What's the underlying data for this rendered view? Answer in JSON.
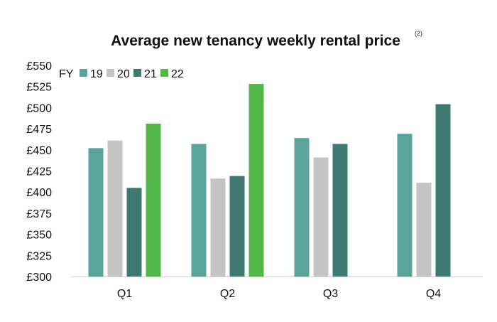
{
  "chart_data": {
    "type": "bar",
    "title": "Average new tenancy weekly rental price",
    "title_note": "(2)",
    "xlabel": "",
    "ylabel": "",
    "categories": [
      "Q1",
      "Q2",
      "Q3",
      "Q4"
    ],
    "y_tick_labels": [
      "£300",
      "£325",
      "£350",
      "£375",
      "£400",
      "£425",
      "£450",
      "£475",
      "£500",
      "£525",
      "£550"
    ],
    "y_ticks": [
      300,
      325,
      350,
      375,
      400,
      425,
      450,
      475,
      500,
      525,
      550
    ],
    "ylim": [
      300,
      550
    ],
    "grid": false,
    "legend": {
      "title": "FY",
      "position": "top-left"
    },
    "series": [
      {
        "name": "19",
        "color": "#5aa49c",
        "values": [
          452,
          457,
          464,
          469
        ]
      },
      {
        "name": "20",
        "color": "#c4c4c4",
        "values": [
          461,
          416,
          441,
          411
        ]
      },
      {
        "name": "21",
        "color": "#3e7a70",
        "values": [
          405,
          419,
          457,
          504
        ]
      },
      {
        "name": "22",
        "color": "#51b848",
        "values": [
          481,
          528,
          null,
          null
        ]
      }
    ]
  }
}
